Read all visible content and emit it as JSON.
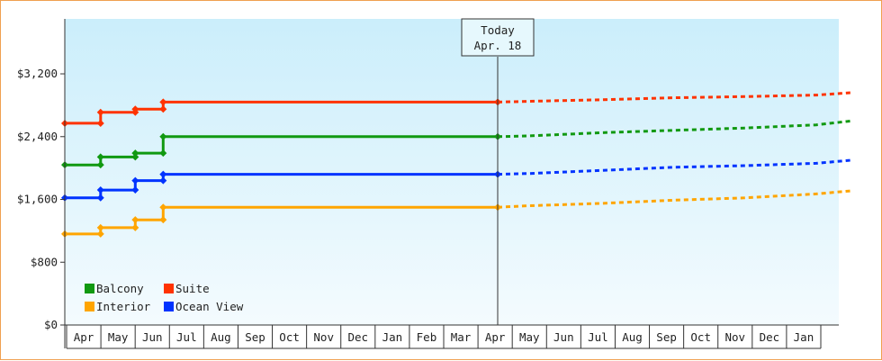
{
  "chart_data": {
    "type": "line",
    "title": "",
    "xlabel": "",
    "ylabel": "",
    "ylim": [
      0,
      3900
    ],
    "yticks": [
      0,
      800,
      1600,
      2400,
      3200
    ],
    "ytick_labels": [
      "$0",
      "$800",
      "$1,600",
      "$2,400",
      "$3,200"
    ],
    "x_month_labels": [
      "Apr",
      "May",
      "Jun",
      "Jul",
      "Aug",
      "Sep",
      "Oct",
      "Nov",
      "Dec",
      "Jan",
      "Feb",
      "Mar",
      "Apr",
      "May",
      "Jun",
      "Jul",
      "Aug",
      "Sep",
      "Oct",
      "Nov",
      "Dec",
      "Jan"
    ],
    "today_marker": {
      "line1": "Today",
      "line2": "Apr. 18",
      "x": 12.1
    },
    "grid": false,
    "legend_position": "bottom-left",
    "series": [
      {
        "name": "Balcony",
        "color": "#119911",
        "history": [
          [
            0.0,
            2040
          ],
          [
            1.0,
            2040
          ],
          [
            1.0,
            2140
          ],
          [
            1.97,
            2140
          ],
          [
            1.97,
            2190
          ],
          [
            2.75,
            2190
          ],
          [
            2.75,
            2400
          ],
          [
            12.1,
            2400
          ]
        ],
        "markers": [
          [
            0.0,
            2040
          ],
          [
            1.0,
            2040
          ],
          [
            1.0,
            2140
          ],
          [
            1.97,
            2140
          ],
          [
            1.97,
            2190
          ],
          [
            2.75,
            2190
          ],
          [
            2.75,
            2400
          ],
          [
            12.1,
            2400
          ]
        ],
        "forecast": [
          [
            12.1,
            2400
          ],
          [
            13.0,
            2410
          ],
          [
            15.0,
            2450
          ],
          [
            17.0,
            2480
          ],
          [
            19.0,
            2510
          ],
          [
            21.0,
            2550
          ],
          [
            22.0,
            2600
          ]
        ]
      },
      {
        "name": "Suite",
        "color": "#ff3300",
        "history": [
          [
            0.0,
            2570
          ],
          [
            1.0,
            2570
          ],
          [
            1.0,
            2710
          ],
          [
            1.97,
            2710
          ],
          [
            1.97,
            2750
          ],
          [
            2.75,
            2750
          ],
          [
            2.75,
            2840
          ],
          [
            12.1,
            2840
          ]
        ],
        "markers": [
          [
            0.0,
            2570
          ],
          [
            1.0,
            2570
          ],
          [
            1.0,
            2710
          ],
          [
            1.97,
            2710
          ],
          [
            1.97,
            2750
          ],
          [
            2.75,
            2750
          ],
          [
            2.75,
            2840
          ],
          [
            12.1,
            2840
          ]
        ],
        "forecast": [
          [
            12.1,
            2840
          ],
          [
            13.0,
            2850
          ],
          [
            15.0,
            2870
          ],
          [
            17.0,
            2895
          ],
          [
            19.0,
            2910
          ],
          [
            21.0,
            2930
          ],
          [
            22.0,
            2960
          ]
        ]
      },
      {
        "name": "Interior",
        "color": "#ffa500",
        "history": [
          [
            0.0,
            1160
          ],
          [
            1.0,
            1160
          ],
          [
            1.0,
            1240
          ],
          [
            1.97,
            1240
          ],
          [
            1.97,
            1340
          ],
          [
            2.75,
            1340
          ],
          [
            2.75,
            1500
          ],
          [
            12.1,
            1500
          ]
        ],
        "markers": [
          [
            0.0,
            1160
          ],
          [
            1.0,
            1160
          ],
          [
            1.0,
            1240
          ],
          [
            1.97,
            1240
          ],
          [
            1.97,
            1340
          ],
          [
            2.75,
            1340
          ],
          [
            2.75,
            1500
          ],
          [
            12.1,
            1500
          ]
        ],
        "forecast": [
          [
            12.1,
            1500
          ],
          [
            13.0,
            1520
          ],
          [
            15.0,
            1550
          ],
          [
            17.0,
            1590
          ],
          [
            19.0,
            1620
          ],
          [
            21.0,
            1670
          ],
          [
            22.0,
            1710
          ]
        ]
      },
      {
        "name": "Ocean View",
        "color": "#0033ff",
        "history": [
          [
            0.0,
            1620
          ],
          [
            1.0,
            1620
          ],
          [
            1.0,
            1720
          ],
          [
            1.97,
            1720
          ],
          [
            1.97,
            1840
          ],
          [
            2.75,
            1840
          ],
          [
            2.75,
            1920
          ],
          [
            12.1,
            1920
          ]
        ],
        "markers": [
          [
            0.0,
            1620
          ],
          [
            1.0,
            1620
          ],
          [
            1.0,
            1720
          ],
          [
            1.97,
            1720
          ],
          [
            1.97,
            1840
          ],
          [
            2.75,
            1840
          ],
          [
            2.75,
            1920
          ],
          [
            12.1,
            1920
          ]
        ],
        "forecast": [
          [
            12.1,
            1920
          ],
          [
            13.0,
            1930
          ],
          [
            15.0,
            1970
          ],
          [
            17.0,
            2010
          ],
          [
            19.0,
            2030
          ],
          [
            21.0,
            2060
          ],
          [
            22.0,
            2100
          ]
        ]
      }
    ],
    "legend_rows": [
      [
        "Balcony",
        "Suite"
      ],
      [
        "Interior",
        "Ocean View"
      ]
    ]
  }
}
